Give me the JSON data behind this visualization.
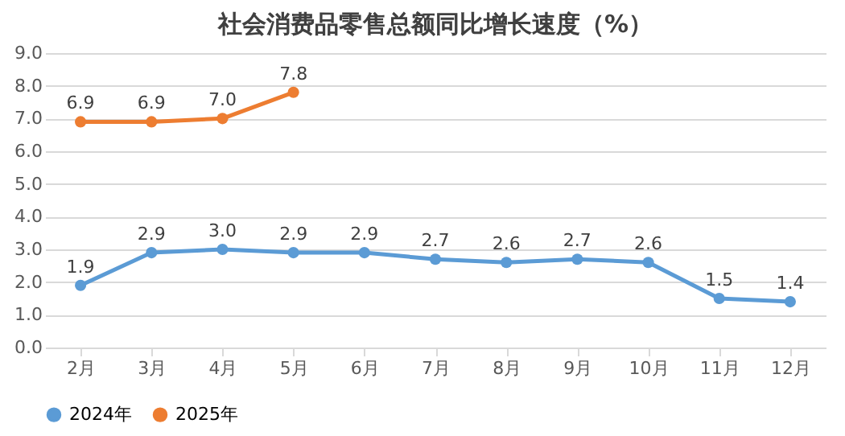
{
  "chart_data": {
    "type": "line",
    "title": "社会消费品零售总额同比增长速度（%）",
    "categories": [
      "2月",
      "3月",
      "4月",
      "5月",
      "6月",
      "7月",
      "8月",
      "9月",
      "10月",
      "11月",
      "12月"
    ],
    "series": [
      {
        "name": "2024年",
        "color": "#5b9bd5",
        "values": [
          1.9,
          2.9,
          3.0,
          2.9,
          2.9,
          2.7,
          2.6,
          2.7,
          2.6,
          1.5,
          1.4
        ],
        "value_labels": [
          "1.9",
          "2.9",
          "3.0",
          "2.9",
          "2.9",
          "2.7",
          "2.6",
          "2.7",
          "2.6",
          "1.5",
          "1.4"
        ]
      },
      {
        "name": "2025年",
        "color": "#ed7d31",
        "values": [
          6.9,
          6.9,
          7.0,
          7.8,
          null,
          null,
          null,
          null,
          null,
          null,
          null
        ],
        "value_labels": [
          "6.9",
          "6.9",
          "7.0",
          "7.8",
          null,
          null,
          null,
          null,
          null,
          null,
          null
        ]
      }
    ],
    "ylim": [
      0,
      9
    ],
    "yticks": [
      {
        "value": 0,
        "label": "0.0"
      },
      {
        "value": 1,
        "label": "1.0"
      },
      {
        "value": 2,
        "label": "2.0"
      },
      {
        "value": 3,
        "label": "3.0"
      },
      {
        "value": 4,
        "label": "4.0"
      },
      {
        "value": 5,
        "label": "5.0"
      },
      {
        "value": 6,
        "label": "6.0"
      },
      {
        "value": 7,
        "label": "7.0"
      },
      {
        "value": 8,
        "label": "8.0"
      },
      {
        "value": 9,
        "label": "9.0"
      }
    ],
    "grid": "y",
    "legend": "bottom",
    "marker": "circle",
    "line_style": "solid",
    "data_labels": true
  }
}
